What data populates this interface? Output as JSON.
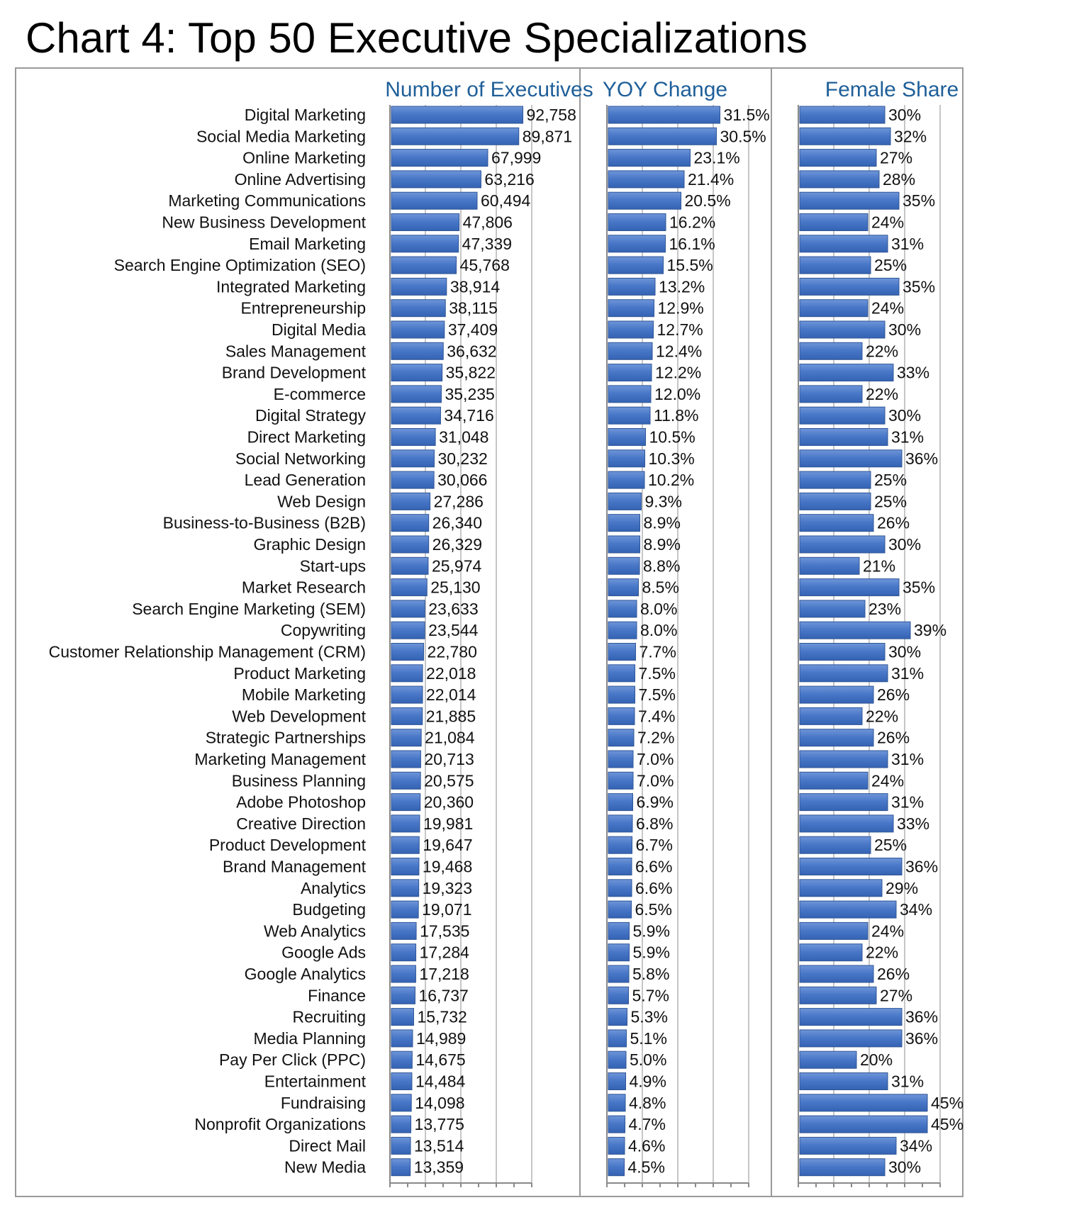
{
  "title": "Chart 4: Top 50 Executive Specializations",
  "chart_data": {
    "type": "bar",
    "orientation": "horizontal",
    "categories": [
      "Digital Marketing",
      "Social Media Marketing",
      "Online Marketing",
      "Online Advertising",
      "Marketing Communications",
      "New Business Development",
      "Email Marketing",
      "Search Engine Optimization (SEO)",
      "Integrated Marketing",
      "Entrepreneurship",
      "Digital Media",
      "Sales Management",
      "Brand Development",
      "E-commerce",
      "Digital Strategy",
      "Direct Marketing",
      "Social Networking",
      "Lead Generation",
      "Web Design",
      "Business-to-Business (B2B)",
      "Graphic Design",
      "Start-ups",
      "Market Research",
      "Search Engine Marketing (SEM)",
      "Copywriting",
      "Customer Relationship Management (CRM)",
      "Product Marketing",
      "Mobile Marketing",
      "Web Development",
      "Strategic Partnerships",
      "Marketing Management",
      "Business Planning",
      "Adobe Photoshop",
      "Creative Direction",
      "Product Development",
      "Brand Management",
      "Analytics",
      "Budgeting",
      "Web Analytics",
      "Google Ads",
      "Google Analytics",
      "Finance",
      "Recruiting",
      "Media Planning",
      "Pay Per Click (PPC)",
      "Entertainment",
      "Fundraising",
      "Nonprofit Organizations",
      "Direct Mail",
      "New Media"
    ],
    "series": [
      {
        "name": "Number of Executives",
        "values": [
          92758,
          89871,
          67999,
          63216,
          60494,
          47806,
          47339,
          45768,
          38914,
          38115,
          37409,
          36632,
          35822,
          35235,
          34716,
          31048,
          30232,
          30066,
          27286,
          26340,
          26329,
          25974,
          25130,
          23633,
          23544,
          22780,
          22018,
          22014,
          21885,
          21084,
          20713,
          20575,
          20360,
          19981,
          19647,
          19468,
          19323,
          19071,
          17535,
          17284,
          17218,
          16737,
          15732,
          14989,
          14675,
          14484,
          14098,
          13775,
          13514,
          13359
        ],
        "labels": [
          "92,758",
          "89,871",
          "67,999",
          "63,216",
          "60,494",
          "47,806",
          "47,339",
          "45,768",
          "38,914",
          "38,115",
          "37,409",
          "36,632",
          "35,822",
          "35,235",
          "34,716",
          "31,048",
          "30,232",
          "30,066",
          "27,286",
          "26,340",
          "26,329",
          "25,974",
          "25,130",
          "23,633",
          "23,544",
          "22,780",
          "22,018",
          "22,014",
          "21,885",
          "21,084",
          "20,713",
          "20,575",
          "20,360",
          "19,981",
          "19,647",
          "19,468",
          "19,323",
          "19,071",
          "17,535",
          "17,284",
          "17,218",
          "16,737",
          "15,732",
          "14,989",
          "14,675",
          "14,484",
          "14,098",
          "13,775",
          "13,514",
          "13,359"
        ],
        "xlim": [
          0,
          100000
        ]
      },
      {
        "name": "YOY Change",
        "values": [
          31.5,
          30.5,
          23.1,
          21.4,
          20.5,
          16.2,
          16.1,
          15.5,
          13.2,
          12.9,
          12.7,
          12.4,
          12.2,
          12.0,
          11.8,
          10.5,
          10.3,
          10.2,
          9.3,
          8.9,
          8.9,
          8.8,
          8.5,
          8.0,
          8.0,
          7.7,
          7.5,
          7.5,
          7.4,
          7.2,
          7.0,
          7.0,
          6.9,
          6.8,
          6.7,
          6.6,
          6.6,
          6.5,
          5.9,
          5.9,
          5.8,
          5.7,
          5.3,
          5.1,
          5.0,
          4.9,
          4.8,
          4.7,
          4.6,
          4.5
        ],
        "labels": [
          "31.5%",
          "30.5%",
          "23.1%",
          "21.4%",
          "20.5%",
          "16.2%",
          "16.1%",
          "15.5%",
          "13.2%",
          "12.9%",
          "12.7%",
          "12.4%",
          "12.2%",
          "12.0%",
          "11.8%",
          "10.5%",
          "10.3%",
          "10.2%",
          "9.3%",
          "8.9%",
          "8.9%",
          "8.8%",
          "8.5%",
          "8.0%",
          "8.0%",
          "7.7%",
          "7.5%",
          "7.5%",
          "7.4%",
          "7.2%",
          "7.0%",
          "7.0%",
          "6.9%",
          "6.8%",
          "6.7%",
          "6.6%",
          "6.6%",
          "6.5%",
          "5.9%",
          "5.9%",
          "5.8%",
          "5.7%",
          "5.3%",
          "5.1%",
          "5.0%",
          "4.9%",
          "4.8%",
          "4.7%",
          "4.6%",
          "4.5%"
        ],
        "xlim": [
          0,
          40
        ]
      },
      {
        "name": "Female Share",
        "values": [
          30,
          32,
          27,
          28,
          35,
          24,
          31,
          25,
          35,
          24,
          30,
          22,
          33,
          22,
          30,
          31,
          36,
          25,
          25,
          26,
          30,
          21,
          35,
          23,
          39,
          30,
          31,
          26,
          22,
          26,
          31,
          24,
          31,
          33,
          25,
          36,
          29,
          34,
          24,
          22,
          26,
          27,
          36,
          36,
          20,
          31,
          45,
          45,
          34,
          30
        ],
        "labels": [
          "30%",
          "32%",
          "27%",
          "28%",
          "35%",
          "24%",
          "31%",
          "25%",
          "35%",
          "24%",
          "30%",
          "22%",
          "33%",
          "22%",
          "30%",
          "31%",
          "36%",
          "25%",
          "25%",
          "26%",
          "30%",
          "21%",
          "35%",
          "23%",
          "39%",
          "30%",
          "31%",
          "26%",
          "22%",
          "26%",
          "31%",
          "24%",
          "31%",
          "33%",
          "25%",
          "36%",
          "29%",
          "34%",
          "24%",
          "22%",
          "26%",
          "27%",
          "36%",
          "36%",
          "20%",
          "31%",
          "45%",
          "45%",
          "34%",
          "30%"
        ],
        "xlim": [
          0,
          50
        ]
      }
    ],
    "grid": true,
    "bar_color": "#4472c4"
  }
}
